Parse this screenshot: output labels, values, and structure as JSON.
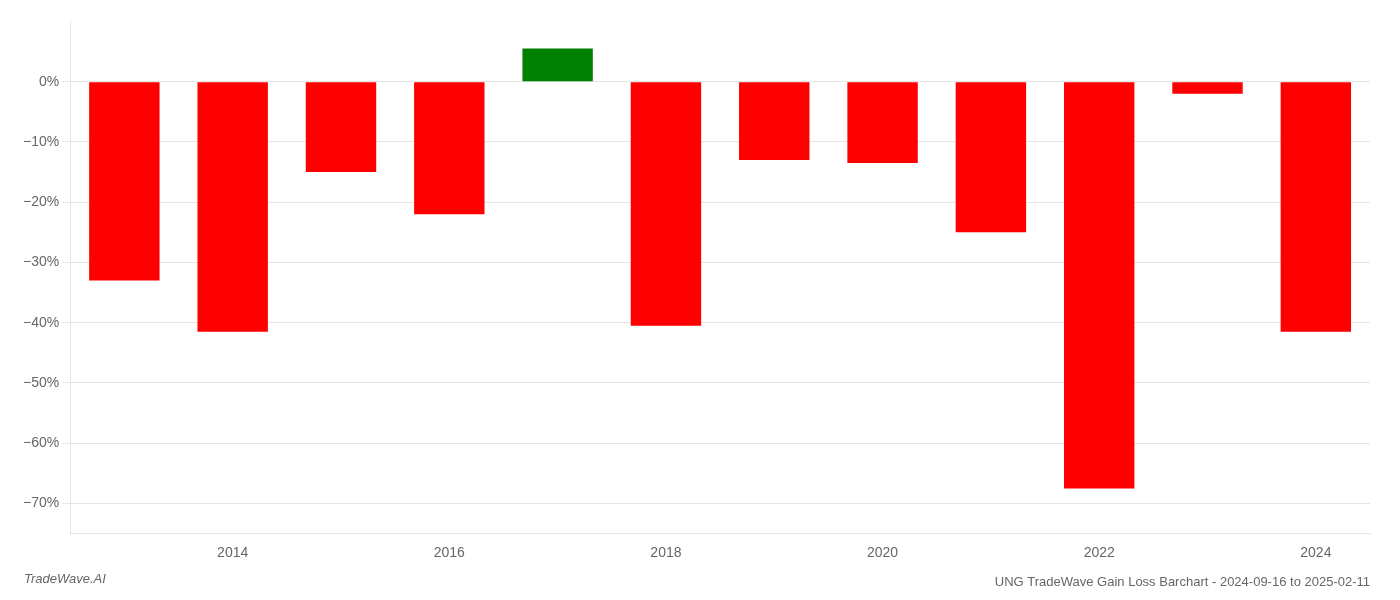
{
  "chart_data": {
    "type": "bar",
    "title": "UNG TradeWave Gain Loss Barchart - 2024-09-16 to 2025-02-11",
    "annotations": [
      {
        "text": "TradeWave.AI"
      }
    ],
    "categories": [
      null,
      "2014",
      null,
      "2016",
      null,
      "2018",
      null,
      "2020",
      null,
      "2022",
      null,
      "2024"
    ],
    "values": [
      -33.0,
      -41.5,
      -15.0,
      -22.0,
      5.5,
      -40.5,
      -13.0,
      -13.5,
      -25.0,
      -67.5,
      -2.0,
      -41.5
    ],
    "colors": [
      "#ff0000",
      "#ff0000",
      "#ff0000",
      "#ff0000",
      "#008000",
      "#ff0000",
      "#ff0000",
      "#ff0000",
      "#ff0000",
      "#ff0000",
      "#ff0000",
      "#ff0000"
    ],
    "ylim": [
      -75,
      10
    ],
    "yticks": [
      {
        "value": 0,
        "label": "0%"
      },
      {
        "value": -10,
        "label": "−10%"
      },
      {
        "value": -20,
        "label": "−20%"
      },
      {
        "value": -30,
        "label": "−30%"
      },
      {
        "value": -40,
        "label": "−40%"
      },
      {
        "value": -50,
        "label": "−50%"
      },
      {
        "value": -60,
        "label": "−60%"
      },
      {
        "value": -70,
        "label": "−70%"
      }
    ],
    "grid": true
  }
}
